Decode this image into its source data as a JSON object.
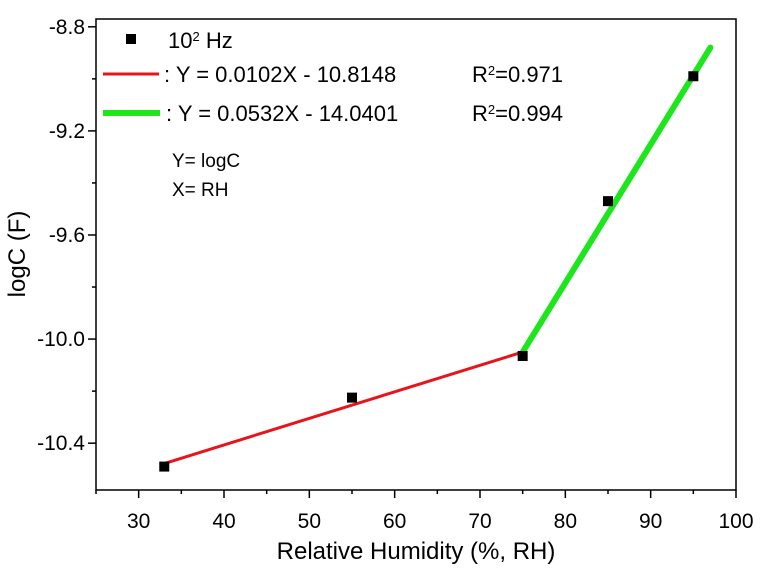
{
  "chart_data": {
    "type": "scatter",
    "xlabel": "Relative Humidity (%, RH)",
    "ylabel": "logC (F)",
    "xlim": [
      25,
      100
    ],
    "ylim": [
      -10.58,
      -8.77
    ],
    "x_ticks": [
      30,
      40,
      50,
      60,
      70,
      80,
      90,
      100
    ],
    "x_tick_labels": [
      "30",
      "40",
      "50",
      "60",
      "70",
      "80",
      "90",
      "100"
    ],
    "y_ticks": [
      -10.4,
      -10.0,
      -9.6,
      -9.2,
      -8.8
    ],
    "y_tick_labels": [
      "-10.4",
      "-10.0",
      "-9.6",
      "-9.2",
      "-8.8"
    ],
    "grid": false,
    "legend_position": "top-left",
    "series": [
      {
        "name": "10² Hz",
        "name_base": "10",
        "name_sup": "2",
        "name_unit": " Hz",
        "marker": "square",
        "color": "#000000",
        "x": [
          33,
          55,
          75,
          85,
          95
        ],
        "y": [
          -10.49,
          -10.225,
          -10.065,
          -9.47,
          -8.99
        ]
      }
    ],
    "fits": [
      {
        "equation": ": Y = 0.0102X - 10.8148",
        "r2_prefix": "R",
        "r2_sup": "2",
        "r2_value": "=0.971",
        "slope": 0.0102,
        "intercept": -10.8148,
        "x_range": [
          33,
          75
        ],
        "color": "#e8141b"
      },
      {
        "equation": ": Y = 0.0532X - 14.0401",
        "r2_prefix": "R",
        "r2_sup": "2",
        "r2_value": "=0.994",
        "slope": 0.0532,
        "intercept": -14.0401,
        "x_range": [
          75,
          97
        ],
        "color": "#1de61d"
      }
    ],
    "annotations": [
      "Y= logC",
      "X= RH"
    ]
  }
}
